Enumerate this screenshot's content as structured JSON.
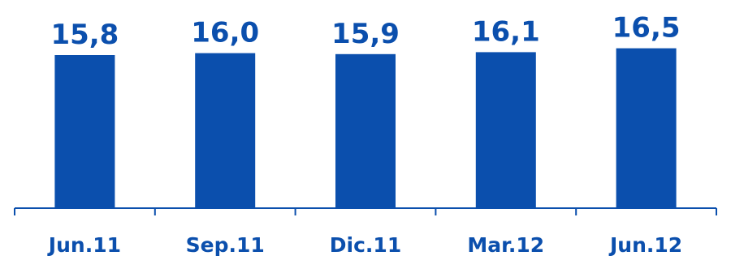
{
  "chart_data": {
    "type": "bar",
    "categories": [
      "Jun.11",
      "Sep.11",
      "Dic.11",
      "Mar.12",
      "Jun.12"
    ],
    "values": [
      15.8,
      16.0,
      15.9,
      16.1,
      16.5
    ],
    "value_labels": [
      "15,8",
      "16,0",
      "15,9",
      "16,1",
      "16,5"
    ],
    "title": "",
    "xlabel": "",
    "ylabel": "",
    "y_axis_visible": false,
    "grid": false,
    "legend": "none",
    "colors": {
      "bar": "#0b4fad",
      "text": "#0b4fad",
      "axis": "#0b4fad"
    }
  }
}
